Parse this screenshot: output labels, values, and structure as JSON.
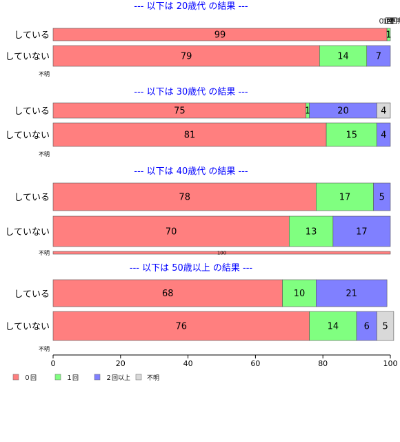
{
  "colors": {
    "zero": "#ff7f7f",
    "one": "#80ff80",
    "two_plus": "#8080ff",
    "unknown": "#d9d9d9",
    "title": "#0000ff",
    "axis": "#000000"
  },
  "chart_data": {
    "type": "bar",
    "orientation": "horizontal",
    "stacked": true,
    "percent": true,
    "xlim": [
      0,
      100
    ],
    "xticks": [
      0,
      20,
      40,
      60,
      80,
      100
    ],
    "legend": {
      "placement": "bottom-left",
      "entries": [
        {
          "label": "０回",
          "color_key": "zero"
        },
        {
          "label": "１回",
          "color_key": "one"
        },
        {
          "label": "２回以上",
          "color_key": "two_plus"
        },
        {
          "label": "不明",
          "color_key": "unknown"
        }
      ]
    },
    "top_labels": [
      "０回",
      "1回",
      "2回",
      "不明"
    ],
    "groups": [
      {
        "title": "--- 以下は 20歳代 の結果 ---",
        "rows": [
          {
            "label": "している",
            "values": [
              99,
              1,
              0,
              0
            ],
            "labels": [
              "99",
              "1",
              "",
              ""
            ]
          },
          {
            "label": "していない",
            "values": [
              79,
              14,
              7,
              0
            ],
            "labels": [
              "79",
              "14",
              "7",
              ""
            ]
          },
          {
            "label": "不明",
            "values": [],
            "labels": []
          }
        ]
      },
      {
        "title": "--- 以下は 30歳代 の結果 ---",
        "rows": [
          {
            "label": "している",
            "values": [
              75,
              1,
              20,
              4
            ],
            "labels": [
              "75",
              "1",
              "20",
              "4"
            ]
          },
          {
            "label": "していない",
            "values": [
              81,
              15,
              4,
              0
            ],
            "labels": [
              "81",
              "15",
              "4",
              ""
            ]
          },
          {
            "label": "不明",
            "values": [],
            "labels": []
          }
        ]
      },
      {
        "title": "--- 以下は 40歳代 の結果 ---",
        "rows": [
          {
            "label": "している",
            "values": [
              78,
              17,
              5,
              0
            ],
            "labels": [
              "78",
              "17",
              "5",
              ""
            ]
          },
          {
            "label": "していない",
            "values": [
              70,
              13,
              17,
              0
            ],
            "labels": [
              "70",
              "13",
              "17",
              ""
            ]
          },
          {
            "label": "不明",
            "values": [
              100,
              0,
              0,
              0
            ],
            "labels": [
              "100",
              "",
              "",
              ""
            ]
          }
        ]
      },
      {
        "title": "--- 以下は 50歳以上 の結果 ---",
        "rows": [
          {
            "label": "している",
            "values": [
              68,
              10,
              21,
              0
            ],
            "labels": [
              "68",
              "10",
              "21",
              ""
            ]
          },
          {
            "label": "していない",
            "values": [
              76,
              14,
              6,
              5
            ],
            "labels": [
              "76",
              "14",
              "6",
              "5"
            ]
          },
          {
            "label": "不明",
            "values": [],
            "labels": []
          }
        ]
      }
    ]
  }
}
